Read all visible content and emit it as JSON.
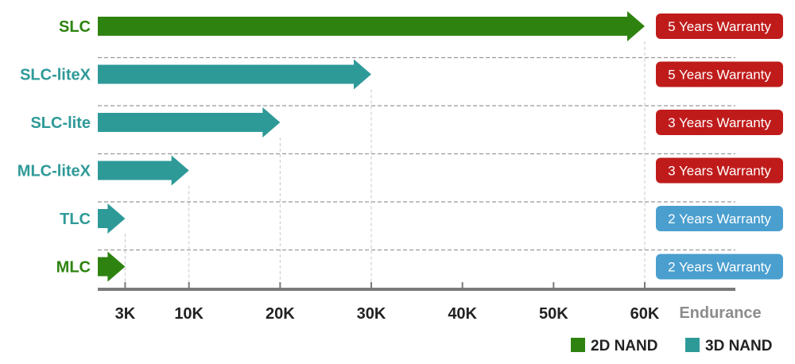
{
  "chart_data": {
    "type": "bar",
    "orientation": "horizontal",
    "categories": [
      "SLC",
      "SLC-liteX",
      "SLC-lite",
      "MLC-liteX",
      "TLC",
      "MLC"
    ],
    "values": [
      60000,
      30000,
      20000,
      10000,
      3000,
      3000
    ],
    "nand_type": [
      "2D NAND",
      "3D NAND",
      "3D NAND",
      "3D NAND",
      "3D NAND",
      "2D NAND"
    ],
    "warranty": [
      "5 Years Warranty",
      "5 Years Warranty",
      "3 Years Warranty",
      "3 Years Warranty",
      "2 Years Warranty",
      "2 Years Warranty"
    ],
    "xticks": [
      3000,
      10000,
      20000,
      30000,
      40000,
      50000,
      60000
    ],
    "xtick_labels": [
      "3K",
      "10K",
      "20K",
      "30K",
      "40K",
      "50K",
      "60K"
    ],
    "xlabel": "Endurance",
    "xlim": [
      0,
      60000
    ],
    "legend": [
      {
        "name": "2D NAND",
        "color": "#2e8310"
      },
      {
        "name": "3D NAND",
        "color": "#2e9a98"
      }
    ],
    "legend_position": "bottom-right",
    "colors": {
      "2D NAND": "#2e8310",
      "3D NAND": "#2e9a98",
      "warranty_5": "#c01b1b",
      "warranty_3": "#c01b1b",
      "warranty_2": "#4a9fcf",
      "axis": "#7a7a7a",
      "gridline": "#999999"
    }
  }
}
